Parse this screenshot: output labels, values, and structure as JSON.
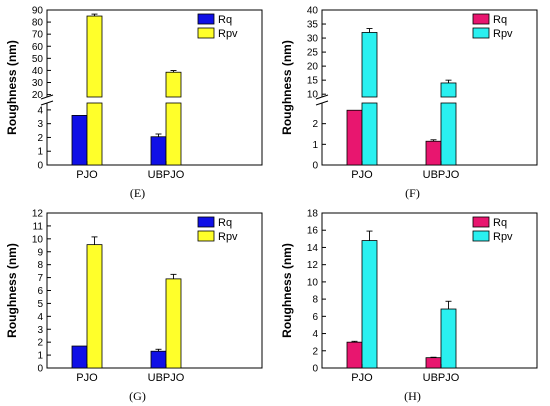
{
  "chart_data": [
    {
      "id": "E",
      "type": "bar",
      "caption": "(E)",
      "categories": [
        "PJO",
        "UBPJO"
      ],
      "ylabel": "Roughness (nm)",
      "y_axis_break": {
        "lower": [
          0,
          4.5
        ],
        "upper": [
          18,
          90
        ]
      },
      "lower_ticks": [
        0,
        1,
        2,
        3,
        4
      ],
      "upper_ticks": [
        20,
        30,
        40,
        50,
        60,
        70,
        80,
        90
      ],
      "series": [
        {
          "name": "Rq",
          "color": "#1010e6",
          "values": [
            3.6,
            2.05
          ],
          "errors": [
            0,
            0.2
          ]
        },
        {
          "name": "Rpv",
          "color": "#ffff2a",
          "values": [
            85.0,
            38.5
          ],
          "errors": [
            1.6,
            1.4
          ]
        }
      ],
      "legend_position": "top-right"
    },
    {
      "id": "F",
      "type": "bar",
      "caption": "(F)",
      "categories": [
        "PJO",
        "UBPJO"
      ],
      "ylabel": "Roughness (nm)",
      "y_axis_break": {
        "lower": [
          0,
          3
        ],
        "upper": [
          9,
          40
        ]
      },
      "lower_ticks": [
        0,
        1,
        2
      ],
      "upper_ticks": [
        10,
        15,
        20,
        25,
        30,
        35,
        40
      ],
      "series": [
        {
          "name": "Rq",
          "color": "#e8166f",
          "values": [
            2.65,
            1.15
          ],
          "errors": [
            0,
            0.07
          ]
        },
        {
          "name": "Rpv",
          "color": "#2af0f0",
          "values": [
            32.0,
            14.0
          ],
          "errors": [
            1.4,
            1.0
          ]
        }
      ],
      "legend_position": "top-right"
    },
    {
      "id": "G",
      "type": "bar",
      "caption": "(G)",
      "categories": [
        "PJO",
        "UBPJO"
      ],
      "ylabel": "Roughness (nm)",
      "ylim": [
        0,
        12
      ],
      "yticks": [
        0,
        1,
        2,
        3,
        4,
        5,
        6,
        7,
        8,
        9,
        10,
        11,
        12
      ],
      "series": [
        {
          "name": "Rq",
          "color": "#1010e6",
          "values": [
            1.7,
            1.3
          ],
          "errors": [
            0,
            0.15
          ]
        },
        {
          "name": "Rpv",
          "color": "#ffff2a",
          "values": [
            9.55,
            6.9
          ],
          "errors": [
            0.6,
            0.35
          ]
        }
      ],
      "legend_position": "top-right"
    },
    {
      "id": "H",
      "type": "bar",
      "caption": "(H)",
      "categories": [
        "PJO",
        "UBPJO"
      ],
      "ylabel": "Roughness (nm)",
      "ylim": [
        0,
        18
      ],
      "yticks": [
        0,
        2,
        4,
        6,
        8,
        10,
        12,
        14,
        16,
        18
      ],
      "series": [
        {
          "name": "Rq",
          "color": "#e8166f",
          "values": [
            3.0,
            1.2
          ],
          "errors": [
            0.1,
            0.05
          ]
        },
        {
          "name": "Rpv",
          "color": "#2af0f0",
          "values": [
            14.8,
            6.85
          ],
          "errors": [
            1.1,
            0.9
          ]
        }
      ],
      "legend_position": "top-right"
    }
  ]
}
